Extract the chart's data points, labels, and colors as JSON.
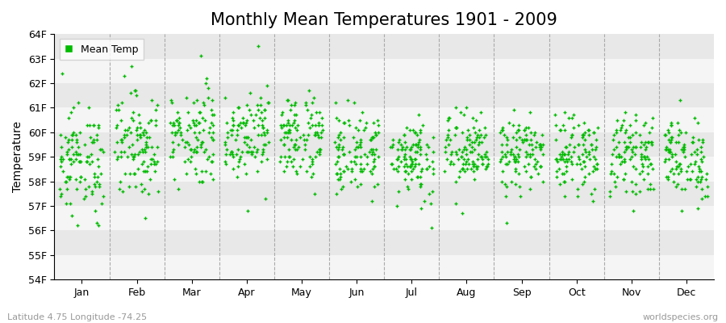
{
  "title": "Monthly Mean Temperatures 1901 - 2009",
  "ylabel": "Temperature",
  "xlabel_labels": [
    "Jan",
    "Feb",
    "Mar",
    "Apr",
    "May",
    "Jun",
    "Jul",
    "Aug",
    "Sep",
    "Oct",
    "Nov",
    "Dec"
  ],
  "bottom_left_text": "Latitude 4.75 Longitude -74.25",
  "bottom_right_text": "worldspecies.org",
  "ylim": [
    54,
    64
  ],
  "ytick_labels": [
    "54F",
    "55F",
    "56F",
    "57F",
    "58F",
    "59F",
    "60F",
    "61F",
    "62F",
    "63F",
    "64F"
  ],
  "legend_label": "Mean Temp",
  "dot_color": "#00bb00",
  "dot_size": 12,
  "background_color": "#ffffff",
  "band_color_light": "#f5f5f5",
  "band_color_dark": "#e8e8e8",
  "vline_color": "#aaaaaa",
  "title_fontsize": 15,
  "axis_fontsize": 10,
  "tick_fontsize": 9,
  "month_means": [
    58.8,
    59.5,
    59.9,
    60.0,
    59.8,
    59.2,
    59.0,
    59.2,
    59.1,
    59.1,
    59.1,
    58.9
  ],
  "month_stds": [
    1.1,
    1.1,
    1.0,
    0.9,
    0.9,
    0.85,
    0.85,
    0.8,
    0.75,
    0.75,
    0.75,
    0.85
  ],
  "n_years": 109
}
